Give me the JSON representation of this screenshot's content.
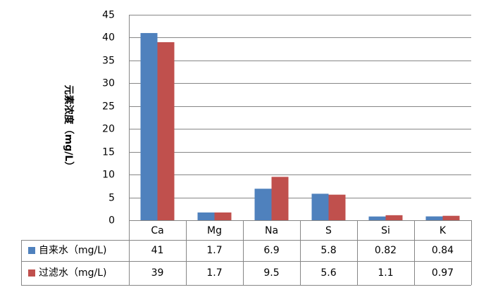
{
  "chart_data": {
    "type": "bar",
    "categories": [
      "Ca",
      "Mg",
      "Na",
      "S",
      "Si",
      "K"
    ],
    "series": [
      {
        "name": "自来水（mg/L)",
        "values": [
          41,
          1.7,
          6.9,
          5.8,
          0.82,
          0.84
        ],
        "labels": [
          "41",
          "1.7",
          "6.9",
          "5.8",
          "0.82",
          "0.84"
        ],
        "color": "#4F81BD"
      },
      {
        "name": "过滤水（mg/L)",
        "values": [
          39,
          1.7,
          9.5,
          5.6,
          1.1,
          0.97
        ],
        "labels": [
          "39",
          "1.7",
          "9.5",
          "5.6",
          "1.1",
          "0.97"
        ],
        "color": "#C0504D"
      }
    ],
    "ylabel": "元素浓度（mg/L）",
    "ylim": [
      0,
      45
    ],
    "yticks": [
      0,
      5,
      10,
      15,
      20,
      25,
      30,
      35,
      40,
      45
    ],
    "grid": true,
    "legend": "data-table"
  }
}
